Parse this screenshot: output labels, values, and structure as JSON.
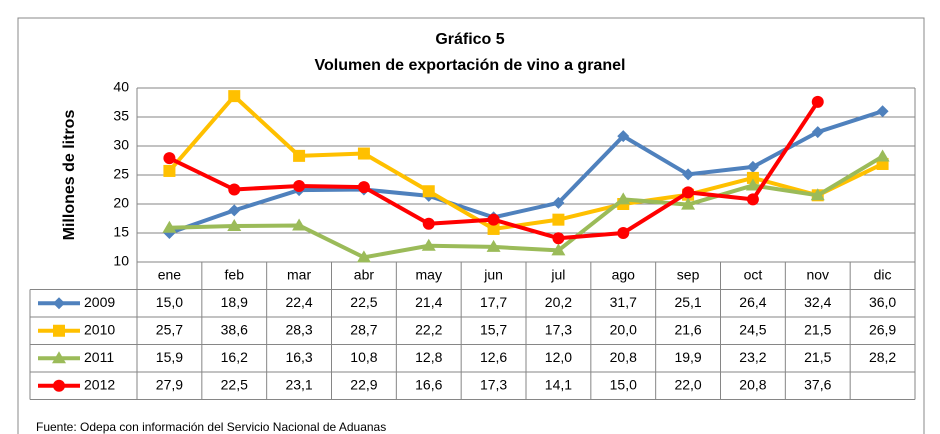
{
  "chart_data": {
    "type": "line",
    "title": "Gráfico 5",
    "subtitle": "Volumen de exportación de vino a granel",
    "y_label": "Millones de litros",
    "source": "Fuente: Odepa con información del Servicio Nacional de Aduanas",
    "categories": [
      "ene",
      "feb",
      "mar",
      "abr",
      "may",
      "jun",
      "jul",
      "ago",
      "sep",
      "oct",
      "nov",
      "dic"
    ],
    "series": [
      {
        "name": "2009",
        "color": "#4f81bd",
        "marker": "diamond",
        "values": [
          15.0,
          18.9,
          22.4,
          22.5,
          21.4,
          17.7,
          20.2,
          31.7,
          25.1,
          26.4,
          32.4,
          36.0
        ],
        "value_labels": [
          "15,0",
          "18,9",
          "22,4",
          "22,5",
          "21,4",
          "17,7",
          "20,2",
          "31,7",
          "25,1",
          "26,4",
          "32,4",
          "36,0"
        ]
      },
      {
        "name": "2010",
        "color": "#ffc000",
        "marker": "square",
        "values": [
          25.7,
          38.6,
          28.3,
          28.7,
          22.2,
          15.7,
          17.3,
          20.0,
          21.6,
          24.5,
          21.5,
          26.9
        ],
        "value_labels": [
          "25,7",
          "38,6",
          "28,3",
          "28,7",
          "22,2",
          "15,7",
          "17,3",
          "20,0",
          "21,6",
          "24,5",
          "21,5",
          "26,9"
        ]
      },
      {
        "name": "2011",
        "color": "#9bbb59",
        "marker": "triangle",
        "values": [
          15.9,
          16.2,
          16.3,
          10.8,
          12.8,
          12.6,
          12.0,
          20.8,
          19.9,
          23.2,
          21.5,
          28.2
        ],
        "value_labels": [
          "15,9",
          "16,2",
          "16,3",
          "10,8",
          "12,8",
          "12,6",
          "12,0",
          "20,8",
          "19,9",
          "23,2",
          "21,5",
          "28,2"
        ]
      },
      {
        "name": "2012",
        "color": "#ff0000",
        "marker": "circle",
        "values": [
          27.9,
          22.5,
          23.1,
          22.9,
          16.6,
          17.3,
          14.1,
          15.0,
          22.0,
          20.8,
          37.6,
          null
        ],
        "value_labels": [
          "27,9",
          "22,5",
          "23,1",
          "22,9",
          "16,6",
          "17,3",
          "14,1",
          "15,0",
          "22,0",
          "20,8",
          "37,6",
          null
        ]
      }
    ],
    "ylim": [
      10,
      40
    ],
    "yticks": [
      10,
      15,
      20,
      25,
      30,
      35,
      40
    ],
    "grid": true
  }
}
